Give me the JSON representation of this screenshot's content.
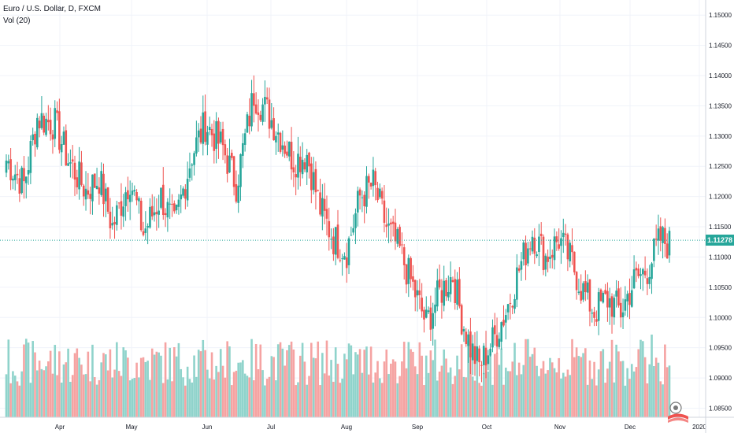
{
  "header": {
    "symbol_line": "Euro / U.S. Dollar, D, FXCM",
    "volume_line": "Vol (20)"
  },
  "colors": {
    "up": "#26a69a",
    "down": "#ef5350",
    "vol_up": "#8fd3cb",
    "vol_down": "#f5a3a2",
    "grid": "#f0f3fa",
    "axis_text": "#131722",
    "last_price_line": "#26a69a"
  },
  "chart_data": {
    "type": "candlestick",
    "x_ticks": [
      "Apr",
      "May",
      "Jun",
      "Jul",
      "Aug",
      "Sep",
      "Oct",
      "Nov",
      "Dec",
      "2020"
    ],
    "y_ticks": [
      "1.15000",
      "1.14500",
      "1.14000",
      "1.13500",
      "1.13000",
      "1.12500",
      "1.12000",
      "1.11500",
      "1.11000",
      "1.10500",
      "1.10000",
      "1.09500",
      "1.09000",
      "1.08500"
    ],
    "ylim": [
      1.0835,
      1.1525
    ],
    "last_price": 1.11278,
    "last_price_label": "1.11278",
    "grid": true,
    "close_anchors": [
      [
        0,
        1.126
      ],
      [
        8,
        1.122
      ],
      [
        14,
        1.133
      ],
      [
        22,
        1.132
      ],
      [
        28,
        1.126
      ],
      [
        36,
        1.121
      ],
      [
        42,
        1.123
      ],
      [
        48,
        1.115
      ],
      [
        56,
        1.123
      ],
      [
        62,
        1.114
      ],
      [
        70,
        1.12
      ],
      [
        76,
        1.115
      ],
      [
        84,
        1.127
      ],
      [
        90,
        1.132
      ],
      [
        98,
        1.128
      ],
      [
        104,
        1.122
      ],
      [
        112,
        1.137
      ],
      [
        118,
        1.134
      ],
      [
        124,
        1.13
      ],
      [
        130,
        1.126
      ],
      [
        136,
        1.127
      ],
      [
        142,
        1.118
      ],
      [
        148,
        1.113
      ],
      [
        154,
        1.111
      ],
      [
        160,
        1.12
      ],
      [
        166,
        1.122
      ],
      [
        172,
        1.115
      ],
      [
        178,
        1.111
      ],
      [
        184,
        1.105
      ],
      [
        190,
        1.099
      ],
      [
        196,
        1.104
      ],
      [
        202,
        1.107
      ],
      [
        206,
        1.1
      ],
      [
        210,
        1.095
      ],
      [
        214,
        1.092
      ],
      [
        220,
        1.096
      ],
      [
        226,
        1.101
      ],
      [
        232,
        1.108
      ],
      [
        238,
        1.114
      ],
      [
        244,
        1.11
      ],
      [
        250,
        1.113
      ],
      [
        256,
        1.109
      ],
      [
        260,
        1.105
      ],
      [
        266,
        1.101
      ],
      [
        272,
        1.103
      ],
      [
        278,
        1.101
      ],
      [
        284,
        1.106
      ],
      [
        290,
        1.108
      ],
      [
        296,
        1.113
      ],
      [
        300,
        1.112
      ]
    ]
  }
}
